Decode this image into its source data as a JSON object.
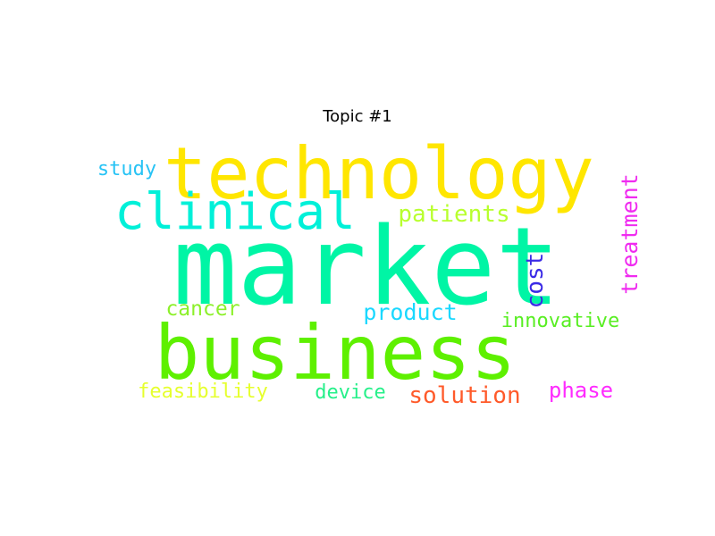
{
  "title": "Topic #1",
  "words": [
    {
      "text": "market",
      "color": "#00f5a5"
    },
    {
      "text": "technology",
      "color": "#ffe600"
    },
    {
      "text": "business",
      "color": "#5ef000"
    },
    {
      "text": "clinical",
      "color": "#00f0d8"
    },
    {
      "text": "patients",
      "color": "#b8ff2e"
    },
    {
      "text": "study",
      "color": "#27c3f5"
    },
    {
      "text": "treatment",
      "color": "#f02bf0"
    },
    {
      "text": "cost",
      "color": "#3a2ae6"
    },
    {
      "text": "cancer",
      "color": "#8cf02a"
    },
    {
      "text": "product",
      "color": "#1ad8ff"
    },
    {
      "text": "innovative",
      "color": "#58ee22"
    },
    {
      "text": "feasibility",
      "color": "#e6ff2e"
    },
    {
      "text": "device",
      "color": "#26f08a"
    },
    {
      "text": "solution",
      "color": "#ff5a2a"
    },
    {
      "text": "phase",
      "color": "#ff2bff"
    }
  ]
}
